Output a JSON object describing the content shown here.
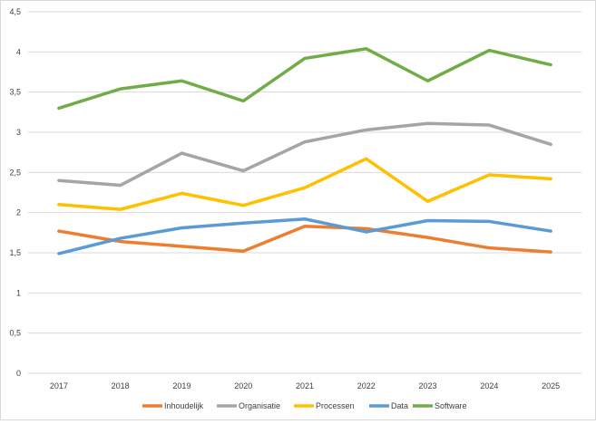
{
  "chart_data": {
    "type": "line",
    "title": "",
    "xlabel": "",
    "ylabel": "",
    "categories": [
      "2017",
      "2018",
      "2019",
      "2020",
      "2021",
      "2022",
      "2023",
      "2024",
      "2025"
    ],
    "ylim": [
      0,
      4.5
    ],
    "y_ticks": [
      "0",
      "0,5",
      "1",
      "1,5",
      "2",
      "2,5",
      "3",
      "3,5",
      "4",
      "4,5"
    ],
    "grid": "horizontal",
    "legend_position": "bottom",
    "series": [
      {
        "name": "Inhoudelijk",
        "color": "#ED7D31",
        "values": [
          1.77,
          1.64,
          1.58,
          1.52,
          1.83,
          1.8,
          1.69,
          1.56,
          1.51
        ]
      },
      {
        "name": "Organisatie",
        "color": "#A5A5A5",
        "values": [
          2.4,
          2.34,
          2.74,
          2.52,
          2.88,
          3.03,
          3.11,
          3.09,
          2.85
        ]
      },
      {
        "name": "Processen",
        "color": "#FFC000",
        "values": [
          2.1,
          2.04,
          2.24,
          2.09,
          2.31,
          2.67,
          2.14,
          2.47,
          2.42
        ]
      },
      {
        "name": "Data",
        "color": "#5B9BD5",
        "values": [
          1.49,
          1.68,
          1.81,
          1.87,
          1.92,
          1.76,
          1.9,
          1.89,
          1.77
        ]
      },
      {
        "name": "Software",
        "color": "#70AD47",
        "values": [
          3.3,
          3.54,
          3.64,
          3.39,
          3.92,
          4.04,
          3.64,
          4.02,
          3.84
        ]
      }
    ]
  }
}
